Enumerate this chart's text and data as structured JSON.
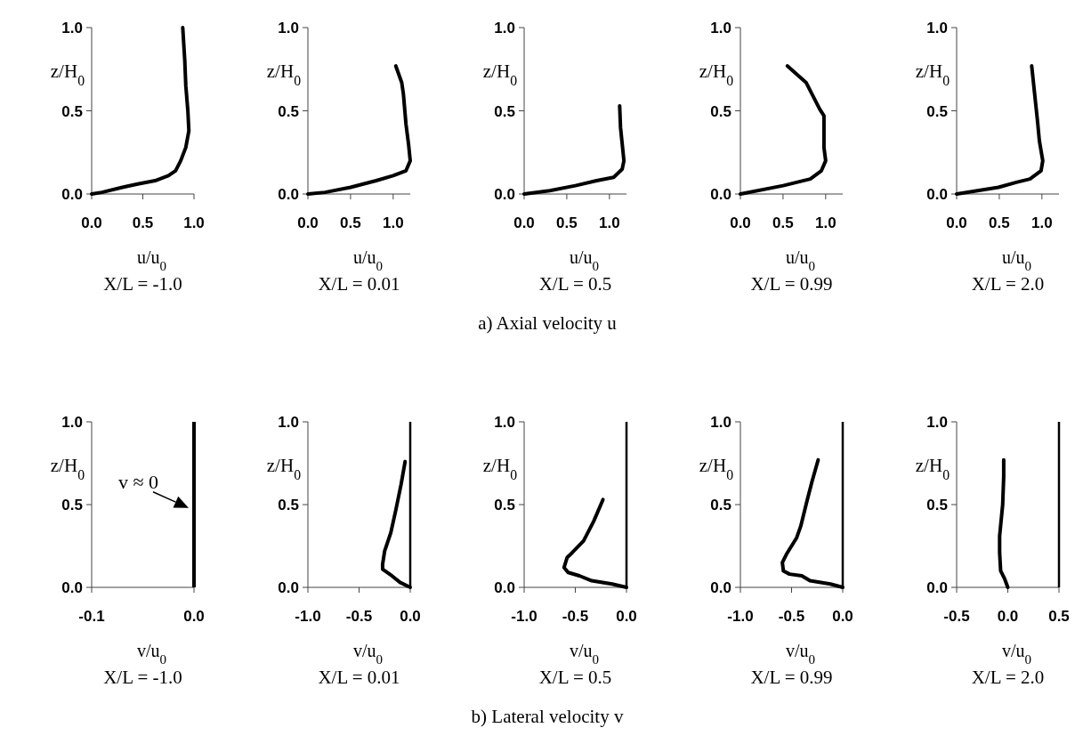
{
  "chart_data": [
    {
      "type": "line",
      "xlabel": "u/u$_{0}$",
      "ylabel": "z/H$_{0}$",
      "subtitle": "X/L = -1.0",
      "xlim": [
        0,
        1.0
      ],
      "xticks": [
        {
          "value": 0,
          "label": "0.0"
        },
        {
          "value": 0.5,
          "label": "0.5"
        },
        {
          "value": 1,
          "label": "1.0"
        }
      ],
      "ylim": [
        0,
        1.0
      ],
      "yticks": [
        {
          "value": 0,
          "label": "0.0"
        },
        {
          "value": 0.5,
          "label": "0.5"
        },
        {
          "value": 1,
          "label": "1.0"
        }
      ],
      "series": [
        {
          "color": "#000000",
          "x": [
            0,
            0.1,
            0.3,
            0.45,
            0.62,
            0.75,
            0.82,
            0.87,
            0.92,
            0.95,
            0.94,
            0.92,
            0.91,
            0.89
          ],
          "values": [
            0,
            0.01,
            0.04,
            0.06,
            0.08,
            0.11,
            0.14,
            0.2,
            0.28,
            0.38,
            0.5,
            0.65,
            0.8,
            1.0
          ]
        }
      ]
    },
    {
      "type": "line",
      "xlabel": "u/u$_{0}$",
      "ylabel": "z/H$_{0}$",
      "subtitle": "X/L = 0.01",
      "xlim": [
        0,
        1.2
      ],
      "xticks": [
        {
          "value": 0,
          "label": "0.0"
        },
        {
          "value": 0.5,
          "label": "0.5"
        },
        {
          "value": 1,
          "label": "1.0"
        }
      ],
      "ylim": [
        0,
        1.0
      ],
      "yticks": [
        {
          "value": 0,
          "label": "0.0"
        },
        {
          "value": 0.5,
          "label": "0.5"
        },
        {
          "value": 1,
          "label": "1.0"
        }
      ],
      "series": [
        {
          "color": "#000000",
          "x": [
            0,
            0.2,
            0.5,
            0.8,
            1.0,
            1.15,
            1.2,
            1.18,
            1.15,
            1.12,
            1.1,
            1.03
          ],
          "values": [
            0,
            0.01,
            0.04,
            0.08,
            0.11,
            0.14,
            0.2,
            0.3,
            0.42,
            0.6,
            0.67,
            0.77
          ]
        }
      ]
    },
    {
      "type": "line",
      "xlabel": "u/u$_{0}$",
      "ylabel": "z/H$_{0}$",
      "subtitle": "X/L = 0.5",
      "annotations": [
        "a) Axial velocity u"
      ],
      "xlim": [
        0,
        1.2
      ],
      "xticks": [
        {
          "value": 0,
          "label": "0.0"
        },
        {
          "value": 0.5,
          "label": "0.5"
        },
        {
          "value": 1,
          "label": "1.0"
        }
      ],
      "ylim": [
        0,
        1.0
      ],
      "yticks": [
        {
          "value": 0,
          "label": "0.0"
        },
        {
          "value": 0.5,
          "label": "0.5"
        },
        {
          "value": 1,
          "label": "1.0"
        }
      ],
      "series": [
        {
          "color": "#000000",
          "x": [
            0,
            0.3,
            0.6,
            0.85,
            1.05,
            1.15,
            1.17,
            1.15,
            1.13,
            1.12
          ],
          "values": [
            0,
            0.02,
            0.05,
            0.08,
            0.1,
            0.15,
            0.2,
            0.3,
            0.4,
            0.53
          ]
        }
      ]
    },
    {
      "type": "line",
      "xlabel": "u/u$_{0}$",
      "ylabel": "z/H$_{0}$",
      "subtitle": "X/L = 0.99",
      "xlim": [
        0,
        1.2
      ],
      "xticks": [
        {
          "value": 0,
          "label": "0.0"
        },
        {
          "value": 0.5,
          "label": "0.5"
        },
        {
          "value": 1,
          "label": "1.0"
        }
      ],
      "ylim": [
        0,
        1.0
      ],
      "yticks": [
        {
          "value": 0,
          "label": "0.0"
        },
        {
          "value": 0.5,
          "label": "0.5"
        },
        {
          "value": 1,
          "label": "1.0"
        }
      ],
      "series": [
        {
          "color": "#000000",
          "x": [
            0,
            0.5,
            0.82,
            0.95,
            1.0,
            0.98,
            0.98,
            0.93,
            0.77,
            0.55
          ],
          "values": [
            0,
            0.05,
            0.09,
            0.14,
            0.2,
            0.28,
            0.47,
            0.51,
            0.67,
            0.77
          ]
        }
      ]
    },
    {
      "type": "line",
      "xlabel": "u/u$_{0}$",
      "ylabel": "z/H$_{0}$",
      "subtitle": "X/L = 2.0",
      "xlim": [
        0,
        1.2
      ],
      "xticks": [
        {
          "value": 0,
          "label": "0.0"
        },
        {
          "value": 0.5,
          "label": "0.5"
        },
        {
          "value": 1,
          "label": "1.0"
        }
      ],
      "ylim": [
        0,
        1.0
      ],
      "yticks": [
        {
          "value": 0,
          "label": "0.0"
        },
        {
          "value": 0.5,
          "label": "0.5"
        },
        {
          "value": 1,
          "label": "1.0"
        }
      ],
      "series": [
        {
          "color": "#000000",
          "x": [
            0,
            0.49,
            0.7,
            0.86,
            0.99,
            1.01,
            0.97,
            0.95,
            0.88
          ],
          "values": [
            0,
            0.04,
            0.07,
            0.09,
            0.14,
            0.2,
            0.32,
            0.43,
            0.77
          ]
        }
      ]
    },
    {
      "type": "line",
      "xlabel": "v/u$_{0}$",
      "ylabel": "z/H$_{0}$",
      "subtitle": "X/L = -1.0",
      "xlim": [
        -0.1,
        0
      ],
      "xticks": [
        -0.1,
        {
          "value": 0,
          "label": "0.0"
        }
      ],
      "ylim": [
        0,
        1.0
      ],
      "yticks": [
        {
          "value": 0,
          "label": "0.0"
        },
        {
          "value": 0.5,
          "label": "0.5"
        },
        {
          "value": 1,
          "label": "1.0"
        }
      ],
      "ref_lines": [
        {
          "axis": "x",
          "value": 0,
          "label": "v ≈ 0",
          "color": "#000000"
        }
      ]
    },
    {
      "type": "line",
      "xlabel": "v/u$_{0}$",
      "ylabel": "z/H$_{0}$",
      "subtitle": "X/L = 0.01",
      "xlim": [
        -1.0,
        0
      ],
      "xticks": [
        {
          "value": -1,
          "label": "-1.0"
        },
        -0.5,
        {
          "value": 0,
          "label": "0.0"
        }
      ],
      "ylim": [
        0,
        1.0
      ],
      "yticks": [
        {
          "value": 0,
          "label": "0.0"
        },
        {
          "value": 0.5,
          "label": "0.5"
        },
        {
          "value": 1,
          "label": "1.0"
        }
      ],
      "ref_lines": [
        {
          "axis": "x",
          "value": 0,
          "color": "#000000"
        }
      ],
      "series": [
        {
          "color": "#000000",
          "x": [
            0,
            -0.1,
            -0.18,
            -0.27,
            -0.27,
            -0.25,
            -0.19,
            -0.14,
            -0.09,
            -0.05
          ],
          "values": [
            0,
            0.03,
            0.07,
            0.11,
            0.14,
            0.22,
            0.33,
            0.47,
            0.62,
            0.76
          ]
        }
      ]
    },
    {
      "type": "line",
      "xlabel": "v/u$_{0}$",
      "ylabel": "z/H$_{0}$",
      "subtitle": "X/L = 0.5",
      "annotations": [
        "b) Lateral velocity v"
      ],
      "xlim": [
        -1.0,
        0
      ],
      "xticks": [
        {
          "value": -1,
          "label": "-1.0"
        },
        -0.5,
        {
          "value": 0,
          "label": "0.0"
        }
      ],
      "ylim": [
        0,
        1.0
      ],
      "yticks": [
        {
          "value": 0,
          "label": "0.0"
        },
        {
          "value": 0.5,
          "label": "0.5"
        },
        {
          "value": 1,
          "label": "1.0"
        }
      ],
      "ref_lines": [
        {
          "axis": "x",
          "value": 0,
          "color": "#000000"
        }
      ],
      "series": [
        {
          "color": "#000000",
          "x": [
            0,
            -0.14,
            -0.34,
            -0.46,
            -0.57,
            -0.61,
            -0.58,
            -0.53,
            -0.42,
            -0.32,
            -0.23
          ],
          "values": [
            0,
            0.02,
            0.04,
            0.07,
            0.09,
            0.12,
            0.18,
            0.21,
            0.28,
            0.4,
            0.53
          ]
        }
      ]
    },
    {
      "type": "line",
      "xlabel": "v/u$_{0}$",
      "ylabel": "z/H$_{0}$",
      "subtitle": "X/L = 0.99",
      "xlim": [
        -1.0,
        0
      ],
      "xticks": [
        {
          "value": -1,
          "label": "-1.0"
        },
        -0.5,
        {
          "value": 0,
          "label": "0.0"
        }
      ],
      "ylim": [
        0,
        1.0
      ],
      "yticks": [
        {
          "value": 0,
          "label": "0.0"
        },
        {
          "value": 0.5,
          "label": "0.5"
        },
        {
          "value": 1,
          "label": "1.0"
        }
      ],
      "ref_lines": [
        {
          "axis": "x",
          "value": 0,
          "color": "#000000"
        }
      ],
      "series": [
        {
          "color": "#000000",
          "x": [
            0,
            -0.12,
            -0.32,
            -0.4,
            -0.52,
            -0.58,
            -0.59,
            -0.55,
            -0.45,
            -0.41,
            -0.35,
            -0.3,
            -0.24
          ],
          "values": [
            0,
            0.02,
            0.04,
            0.07,
            0.08,
            0.1,
            0.15,
            0.2,
            0.3,
            0.37,
            0.52,
            0.64,
            0.77
          ]
        }
      ]
    },
    {
      "type": "line",
      "xlabel": "v/u$_{0}$",
      "ylabel": "z/H$_{0}$",
      "subtitle": "X/L = 2.0",
      "xlim": [
        -0.5,
        0.5
      ],
      "xticks": [
        -0.5,
        {
          "value": 0,
          "label": "0.0"
        },
        0.5
      ],
      "ylim": [
        0,
        1.0
      ],
      "yticks": [
        {
          "value": 0,
          "label": "0.0"
        },
        {
          "value": 0.5,
          "label": "0.5"
        },
        {
          "value": 1,
          "label": "1.0"
        }
      ],
      "ref_lines": [
        {
          "axis": "x",
          "value": 0.5,
          "color": "#000000"
        }
      ],
      "series": [
        {
          "color": "#000000",
          "x": [
            0,
            -0.03,
            -0.07,
            -0.08,
            -0.08,
            -0.05,
            -0.04,
            -0.04
          ],
          "values": [
            0,
            0.05,
            0.1,
            0.21,
            0.31,
            0.5,
            0.67,
            0.77
          ]
        }
      ]
    }
  ]
}
